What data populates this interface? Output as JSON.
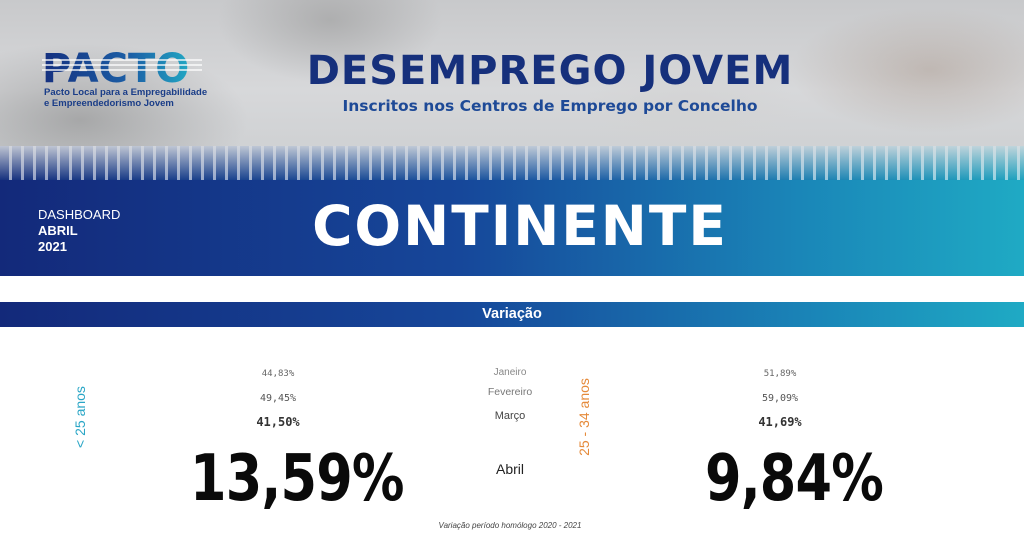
{
  "header": {
    "logo_word": "PACTO",
    "logo_line1": "Pacto Local para a Empregabilidade",
    "logo_line2": "e Empreendedorismo Jovem",
    "title": "DESEMPREGO JOVEM",
    "subtitle": "Inscritos nos Centros de Emprego por Concelho"
  },
  "banner": {
    "dashboard_label": "DASHBOARD",
    "month": "ABRIL",
    "year": "2021",
    "region": "CONTINENTE"
  },
  "section": {
    "title": "Variação"
  },
  "months": {
    "jan": "Janeiro",
    "feb": "Fevereiro",
    "mar": "Março",
    "apr": "Abril"
  },
  "group_under25": {
    "label": "< 25 anos",
    "jan": "44,83%",
    "feb": "49,45%",
    "mar": "41,50%",
    "apr": "13,59%"
  },
  "group_25_34": {
    "label": "25 - 34 anos",
    "jan": "51,89%",
    "feb": "59,09%",
    "mar": "41,69%",
    "apr": "9,84%"
  },
  "footnote": "Variação período homólogo 2020 - 2021",
  "colors": {
    "navy": "#16307c",
    "teal": "#1faac4",
    "orange": "#e58a3a",
    "cyan_label": "#2aa6c6"
  }
}
